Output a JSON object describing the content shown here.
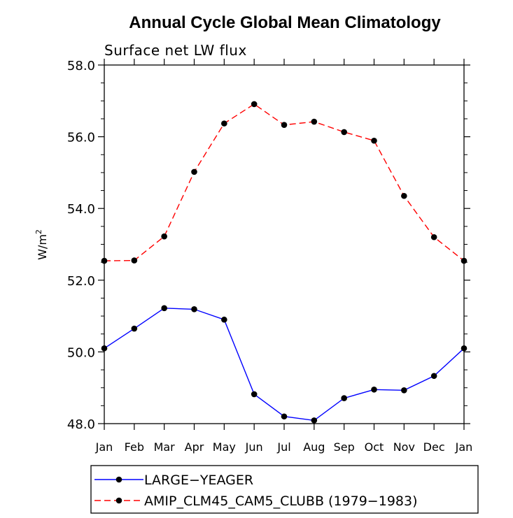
{
  "chart_data": {
    "type": "line",
    "title": "Annual Cycle Global Mean Climatology",
    "subtitle": "Surface net LW flux",
    "ylabel_base": "W/m",
    "ylabel_sup": "2",
    "xlabel": "",
    "ylim": [
      48.0,
      58.0
    ],
    "y_ticks": [
      "48.0",
      "50.0",
      "52.0",
      "54.0",
      "56.0",
      "58.0"
    ],
    "categories": [
      "Jan",
      "Feb",
      "Mar",
      "Apr",
      "May",
      "Jun",
      "Jul",
      "Aug",
      "Sep",
      "Oct",
      "Nov",
      "Dec",
      "Jan"
    ],
    "series": [
      {
        "name": "LARGE−YEAGER",
        "color": "#0000ff",
        "dash": "solid",
        "values": [
          50.1,
          50.65,
          51.22,
          51.19,
          50.9,
          48.82,
          48.2,
          48.09,
          48.71,
          48.95,
          48.93,
          49.33,
          50.1
        ]
      },
      {
        "name": "AMIP_CLM45_CAM5_CLUBB (1979−1983)",
        "color": "#ff0000",
        "dash": "dashed",
        "values": [
          52.54,
          52.55,
          53.22,
          55.02,
          56.37,
          56.91,
          56.33,
          56.42,
          56.13,
          55.89,
          54.35,
          53.2,
          52.54
        ]
      }
    ],
    "marker_color": "#000000",
    "grid": false,
    "legend_position": "bottom"
  }
}
